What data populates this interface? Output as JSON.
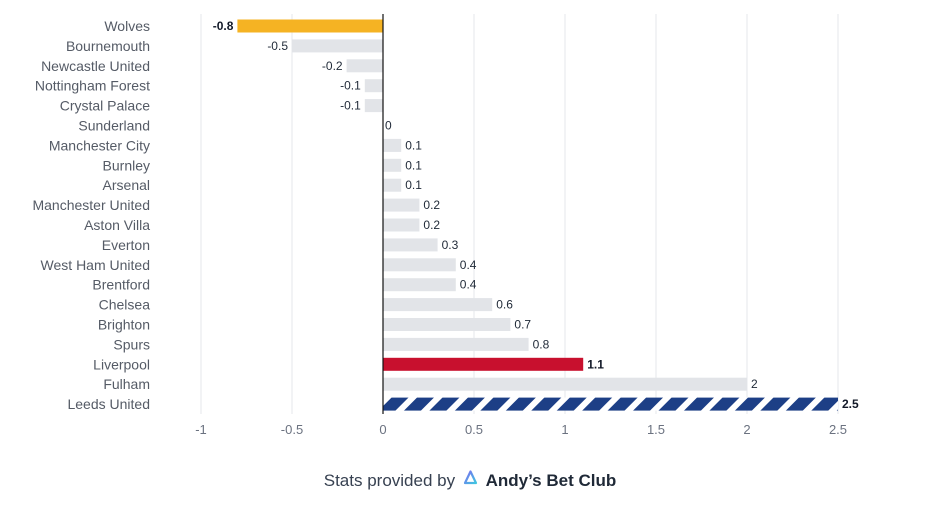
{
  "chart_data": {
    "type": "bar",
    "orientation": "horizontal",
    "categories": [
      "Wolves",
      "Bournemouth",
      "Newcastle United",
      "Nottingham Forest",
      "Crystal Palace",
      "Sunderland",
      "Manchester City",
      "Burnley",
      "Arsenal",
      "Manchester United",
      "Aston Villa",
      "Everton",
      "West Ham United",
      "Brentford",
      "Chelsea",
      "Brighton",
      "Spurs",
      "Liverpool",
      "Fulham",
      "Leeds United"
    ],
    "values": [
      -0.8,
      -0.5,
      -0.2,
      -0.1,
      -0.1,
      0,
      0.1,
      0.1,
      0.1,
      0.2,
      0.2,
      0.3,
      0.4,
      0.4,
      0.6,
      0.7,
      0.8,
      1.1,
      2,
      2.5
    ],
    "value_labels": [
      "-0.8",
      "-0.5",
      "-0.2",
      "-0.1",
      "-0.1",
      "0",
      "0.1",
      "0.1",
      "0.1",
      "0.2",
      "0.2",
      "0.3",
      "0.4",
      "0.4",
      "0.6",
      "0.7",
      "0.8",
      "1.1",
      "2",
      "2.5"
    ],
    "bold_labels": [
      "Wolves",
      "Liverpool",
      "Leeds United"
    ],
    "bar_colors": {
      "Wolves": "#f5b323",
      "Liverpool": "#c8102e",
      "Leeds United": "striped"
    },
    "default_color": "#e2e4e8",
    "stripe_colors": [
      "#1d3f86",
      "#ffffff"
    ],
    "xlim": [
      -1,
      2.5
    ],
    "xticks": [
      -1,
      -0.5,
      0,
      0.5,
      1,
      1.5,
      2,
      2.5
    ],
    "xtick_labels": [
      "-1",
      "-0.5",
      "0",
      "0.5",
      "1",
      "1.5",
      "2",
      "2.5"
    ],
    "grid": true,
    "title": "",
    "xlabel": "",
    "ylabel": ""
  },
  "footer": {
    "prefix": "Stats provided by",
    "brand": "Andy’s Bet Club",
    "logo_icon": "abc-logo-icon"
  }
}
